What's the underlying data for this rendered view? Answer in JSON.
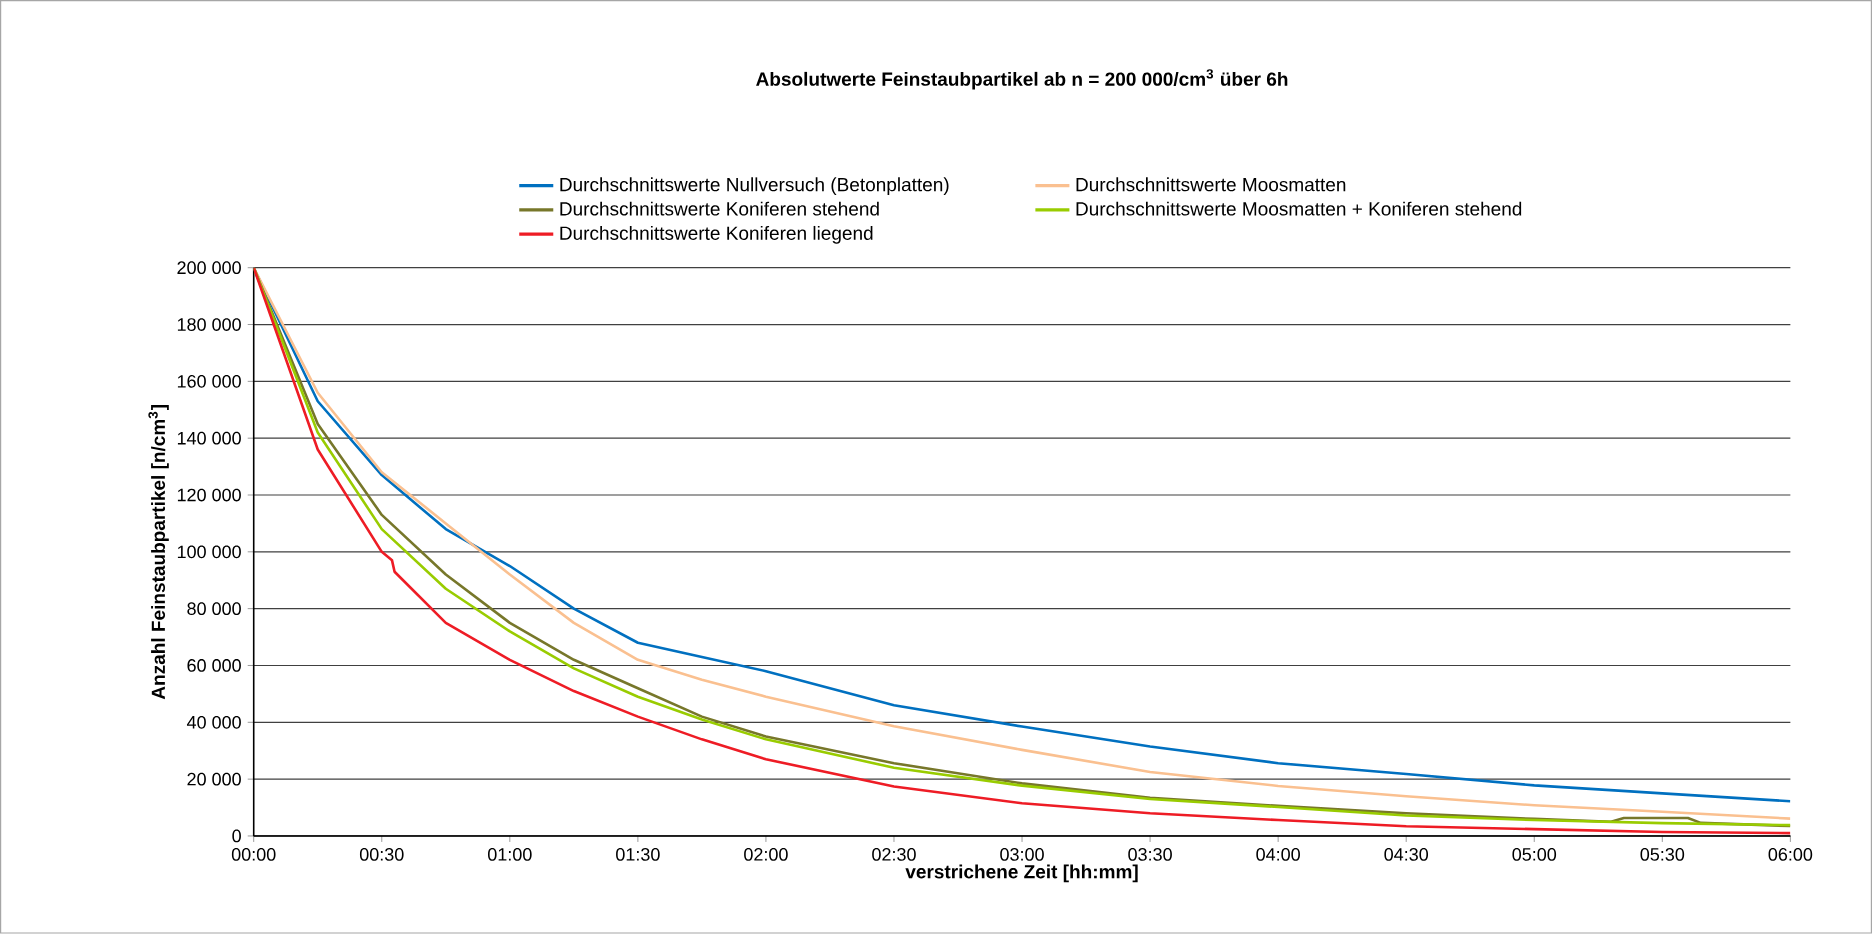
{
  "chart_data": {
    "type": "line",
    "title": "**Absolutwerte Feinstaubpartikel ab n = 200 000/cm$^{3}$ über 6h**",
    "xlabel": "verstrichene Zeit [hh:mm]",
    "ylabel": "Anzahl Feinstaubpartikel [n/cm$^{3}$]",
    "x": [
      0,
      0.25,
      0.5,
      0.75,
      1,
      1.25,
      1.5,
      1.75,
      2,
      2.5,
      3,
      3.5,
      4,
      4.5,
      5,
      5.5,
      6
    ],
    "series": [
      {
        "name": "Durchschnittswerte Nullversuch (Betonplatten)",
        "color": "#0070c0",
        "values": [
          200000,
          153000,
          127000,
          108000,
          95000,
          80000,
          68000,
          63000,
          58000,
          46000,
          38500,
          31500,
          25600,
          21800,
          17800,
          15000,
          12200
        ]
      },
      {
        "name": "Durchschnittswerte Moosmatten",
        "color": "#fac090",
        "values": [
          200000,
          156000,
          128000,
          110000,
          92000,
          75000,
          62000,
          55000,
          49000,
          38600,
          30300,
          22500,
          17600,
          14000,
          10800,
          8500,
          6100
        ]
      },
      {
        "name": "Durchschnittswerte Koniferen stehend",
        "color": "#77772a",
        "x": [
          0,
          0.25,
          0.5,
          0.75,
          1,
          1.25,
          1.5,
          1.75,
          2,
          2.5,
          3,
          3.5,
          4,
          4.5,
          5,
          5.3,
          5.35,
          5.6,
          5.65,
          6
        ],
        "values": [
          200000,
          145000,
          113000,
          92000,
          75000,
          62000,
          52000,
          42000,
          35000,
          25600,
          18500,
          13400,
          10600,
          8000,
          6000,
          5000,
          6300,
          6300,
          4600,
          3500
        ]
      },
      {
        "name": "Durchschnittswerte Moosmatten + Koniferen stehend",
        "color": "#99cc00",
        "values": [
          200000,
          142000,
          108000,
          87000,
          72000,
          59000,
          49000,
          41000,
          34000,
          24000,
          17700,
          13000,
          10200,
          7200,
          5600,
          4500,
          3800
        ]
      },
      {
        "name": "Durchschnittswerte Koniferen liegend",
        "color": "#ee1c25",
        "x": [
          0,
          0.25,
          0.5,
          0.54,
          0.55,
          0.75,
          1,
          1.25,
          1.5,
          1.75,
          2,
          2.5,
          3,
          3.5,
          4,
          4.5,
          5,
          5.5,
          6
        ],
        "values": [
          200000,
          136000,
          100000,
          97000,
          93000,
          75000,
          62000,
          51000,
          42000,
          34000,
          27000,
          17400,
          11500,
          8000,
          5600,
          3400,
          2400,
          1400,
          1000
        ]
      }
    ],
    "xlim": [
      0,
      6
    ],
    "xticks": [
      {
        "value": 0,
        "label": "00:00"
      },
      {
        "value": 0.5,
        "label": "00:30"
      },
      {
        "value": 1,
        "label": "01:00"
      },
      {
        "value": 1.5,
        "label": "01:30"
      },
      {
        "value": 2,
        "label": "02:00"
      },
      {
        "value": 2.5,
        "label": "02:30"
      },
      {
        "value": 3,
        "label": "03:00"
      },
      {
        "value": 3.5,
        "label": "03:30"
      },
      {
        "value": 4,
        "label": "04:00"
      },
      {
        "value": 4.5,
        "label": "04:30"
      },
      {
        "value": 5,
        "label": "05:00"
      },
      {
        "value": 5.5,
        "label": "05:30"
      },
      {
        "value": 6,
        "label": "06:00"
      }
    ],
    "ylim": [
      0,
      200000
    ],
    "yticks": [
      0,
      {
        "value": 20000,
        "label": "20 000"
      },
      {
        "value": 40000,
        "label": "40 000"
      },
      {
        "value": 60000,
        "label": "60 000"
      },
      {
        "value": 80000,
        "label": "80 000"
      },
      {
        "value": 100000,
        "label": "100 000"
      },
      {
        "value": 120000,
        "label": "120 000"
      },
      {
        "value": 140000,
        "label": "140 000"
      },
      {
        "value": 160000,
        "label": "160 000"
      },
      {
        "value": 180000,
        "label": "180 000"
      },
      {
        "value": 200000,
        "label": "200 000"
      }
    ],
    "grid": "y",
    "legend": "top",
    "marker": "none",
    "line_style": "solid"
  }
}
